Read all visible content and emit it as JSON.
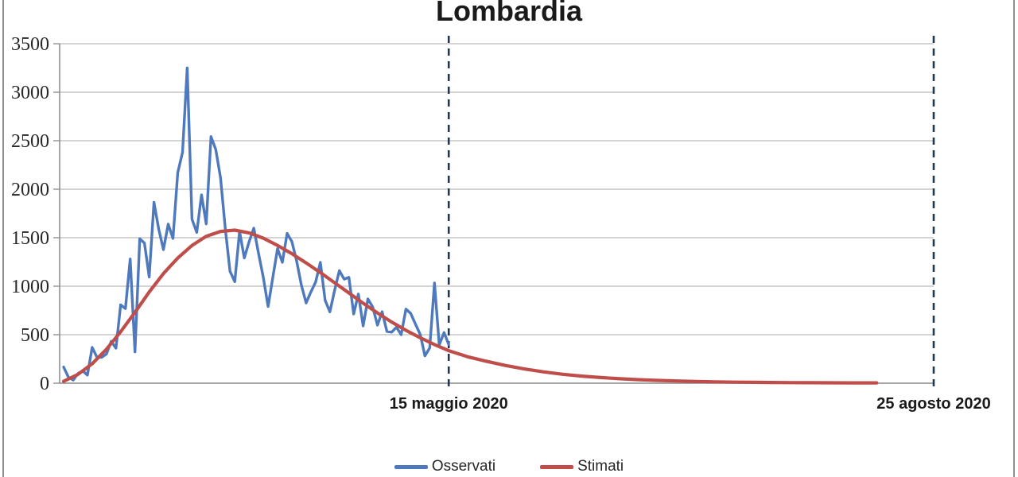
{
  "chart_data": {
    "type": "line",
    "title": "Lombardia",
    "xlabel": "",
    "ylabel": "",
    "ylim": [
      0,
      3500
    ],
    "yticks": [
      0,
      500,
      1000,
      1500,
      2000,
      2500,
      3000,
      3500
    ],
    "grid": "horizontal",
    "background": "#FFFFFF",
    "gridline_color": "#A8A8A8",
    "axis_color": "#8A8A8A",
    "marker_line_color": "#20375C",
    "legend_position": "bottom-center",
    "x_domain_days": [
      0,
      183
    ],
    "series": [
      {
        "name": "Osservati",
        "kind": "observed-daily-values",
        "color": "#4E79BD",
        "x_start_day": 0,
        "values": [
          166,
          62,
          32,
          98,
          128,
          84,
          369,
          270,
          266,
          300,
          431,
          361,
          808,
          769,
          1280,
          322,
          1489,
          1445,
          1095,
          1865,
          1587,
          1377,
          1640,
          1493,
          2171,
          2380,
          3251,
          1691,
          1555,
          1942,
          1643,
          2543,
          2409,
          2117,
          1592,
          1154,
          1047,
          1565,
          1292,
          1455,
          1598,
          1337,
          1089,
          791,
          1089,
          1388,
          1246,
          1544,
          1460,
          1262,
          1012,
          827,
          941,
          1041,
          1246,
          855,
          735,
          960,
          1161,
          1073,
          1091,
          713,
          920,
          590,
          869,
          786,
          598,
          737,
          533,
          526,
          577,
          500,
          764,
          720,
          609,
          502,
          282,
          364,
          1033,
          394,
          522,
          399
        ]
      },
      {
        "name": "Stimati",
        "kind": "estimated-smooth-curve",
        "color": "#BF4E4B",
        "points": [
          [
            0,
            20
          ],
          [
            3,
            90
          ],
          [
            6,
            200
          ],
          [
            9,
            350
          ],
          [
            12,
            530
          ],
          [
            15,
            730
          ],
          [
            18,
            940
          ],
          [
            21,
            1130
          ],
          [
            24,
            1290
          ],
          [
            27,
            1420
          ],
          [
            30,
            1515
          ],
          [
            33,
            1565
          ],
          [
            36,
            1578
          ],
          [
            39,
            1550
          ],
          [
            42,
            1495
          ],
          [
            45,
            1420
          ],
          [
            48,
            1335
          ],
          [
            51,
            1240
          ],
          [
            54,
            1140
          ],
          [
            57,
            1035
          ],
          [
            60,
            930
          ],
          [
            63,
            825
          ],
          [
            66,
            725
          ],
          [
            69,
            630
          ],
          [
            72,
            545
          ],
          [
            75,
            468
          ],
          [
            78,
            398
          ],
          [
            81,
            335
          ],
          [
            85,
            272
          ],
          [
            89,
            225
          ],
          [
            93,
            182
          ],
          [
            97,
            146
          ],
          [
            101,
            116
          ],
          [
            105,
            92
          ],
          [
            109,
            73
          ],
          [
            113,
            58
          ],
          [
            117,
            46
          ],
          [
            121,
            36
          ],
          [
            125,
            29
          ],
          [
            129,
            23
          ],
          [
            133,
            18
          ],
          [
            137,
            14
          ],
          [
            141,
            11
          ],
          [
            145,
            9
          ],
          [
            149,
            7
          ],
          [
            153,
            6
          ],
          [
            157,
            5
          ],
          [
            161,
            4
          ],
          [
            165,
            3
          ],
          [
            168,
            3
          ],
          [
            171,
            3
          ]
        ]
      }
    ],
    "markers": [
      {
        "day": 81,
        "label": "15 maggio 2020"
      },
      {
        "day": 183,
        "label": "25 agosto 2020"
      }
    ]
  }
}
